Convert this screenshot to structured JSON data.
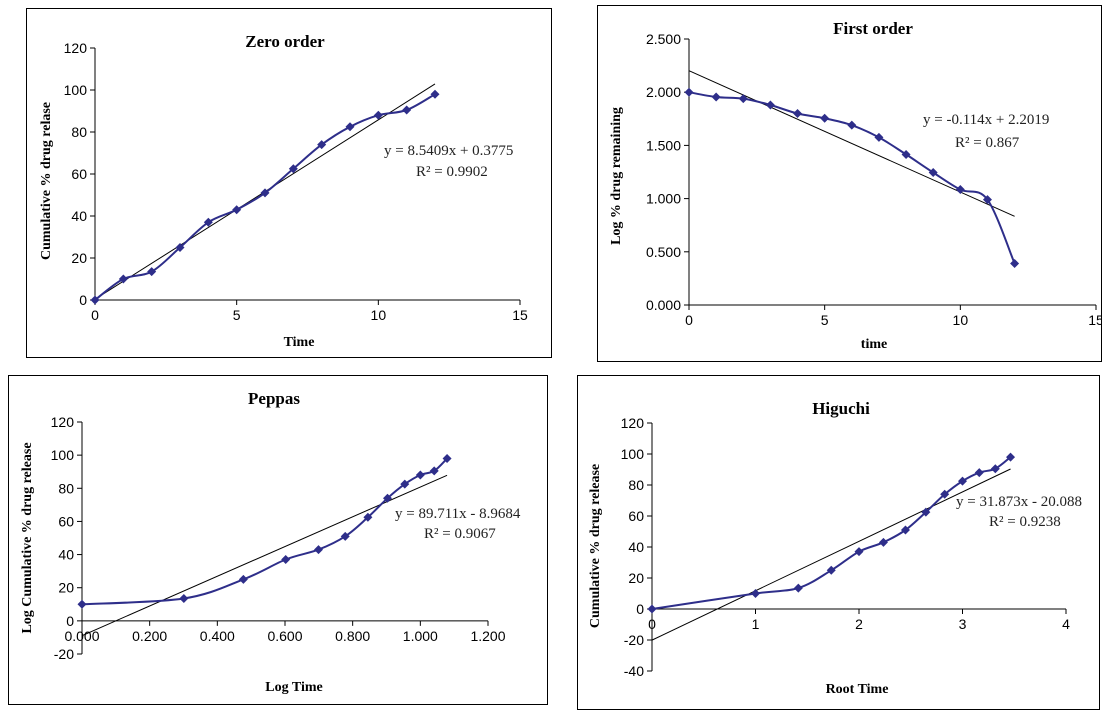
{
  "chart_data": [
    {
      "type": "scatter",
      "title": "Zero order",
      "xlabel": "Time",
      "ylabel": "Cumulative % drug relase",
      "xlim": [
        0,
        15
      ],
      "ylim": [
        0,
        120
      ],
      "xticks": [
        0,
        5,
        10,
        15
      ],
      "yticks": [
        0,
        20,
        40,
        60,
        80,
        100,
        120
      ],
      "xtick_labels": [
        "0",
        "5",
        "10",
        "15"
      ],
      "ytick_labels": [
        "0",
        "20",
        "40",
        "60",
        "80",
        "100",
        "120"
      ],
      "series": [
        {
          "x": [
            0,
            1,
            2,
            3,
            4,
            5,
            6,
            7,
            8,
            9,
            10,
            11,
            12
          ],
          "y": [
            0,
            10,
            13.5,
            25,
            37,
            43,
            51,
            62.5,
            74,
            82.5,
            88,
            90.5,
            98
          ]
        }
      ],
      "trendline": {
        "slope": 8.5409,
        "intercept": 0.3775,
        "x_range": [
          0,
          12
        ]
      },
      "equation": "y = 8.5409x + 0.3775",
      "r2": "R² = 0.9902",
      "grid": false,
      "colors": {
        "series": "#2e2e8a",
        "trendline": "#000000"
      }
    },
    {
      "type": "scatter",
      "title": "First order",
      "xlabel": "time",
      "ylabel": "Log % drug remaining",
      "xlim": [
        0,
        15
      ],
      "ylim": [
        0,
        2.5
      ],
      "xticks": [
        0,
        5,
        10,
        15
      ],
      "yticks": [
        0,
        0.5,
        1,
        1.5,
        2,
        2.5
      ],
      "xtick_labels": [
        "0",
        "5",
        "10",
        "15"
      ],
      "ytick_labels": [
        "0.000",
        "0.500",
        "1.000",
        "1.500",
        "2.000",
        "2.500"
      ],
      "series": [
        {
          "x": [
            0,
            1,
            2,
            3,
            4,
            5,
            6,
            7,
            8,
            9,
            10,
            11,
            12
          ],
          "y": [
            2.0,
            1.955,
            1.94,
            1.88,
            1.8,
            1.755,
            1.69,
            1.575,
            1.415,
            1.245,
            1.085,
            0.99,
            0.39
          ]
        }
      ],
      "trendline": {
        "slope": -0.114,
        "intercept": 2.2019,
        "x_range": [
          0,
          12
        ]
      },
      "equation": "y = -0.114x + 2.2019",
      "r2": "R² = 0.867",
      "grid": false,
      "colors": {
        "series": "#2e2e8a",
        "trendline": "#000000"
      }
    },
    {
      "type": "scatter",
      "title": "Peppas",
      "xlabel": "Log Time",
      "ylabel": "Log Cumulative % drug release",
      "xlim": [
        0,
        1.2
      ],
      "ylim": [
        -20,
        120
      ],
      "xticks": [
        0,
        0.2,
        0.4,
        0.6,
        0.8,
        1.0,
        1.2
      ],
      "yticks": [
        -20,
        0,
        20,
        40,
        60,
        80,
        100,
        120
      ],
      "xtick_labels": [
        "0.000",
        "0.200",
        "0.400",
        "0.600",
        "0.800",
        "1.000",
        "1.200"
      ],
      "ytick_labels": [
        "-20",
        "0",
        "20",
        "40",
        "60",
        "80",
        "100",
        "120"
      ],
      "series": [
        {
          "x": [
            0,
            0.301,
            0.477,
            0.602,
            0.699,
            0.778,
            0.845,
            0.903,
            0.954,
            1.0,
            1.041,
            1.079
          ],
          "y": [
            10,
            13.5,
            25,
            37,
            43,
            51,
            62.5,
            74,
            82.5,
            88,
            90.5,
            98
          ]
        }
      ],
      "trendline": {
        "slope": 89.711,
        "intercept": -8.9684,
        "x_range": [
          0,
          1.079
        ]
      },
      "equation": "y = 89.711x - 8.9684",
      "r2": "R² = 0.9067",
      "grid": false,
      "colors": {
        "series": "#2e2e8a",
        "trendline": "#000000"
      }
    },
    {
      "type": "scatter",
      "title": "Higuchi",
      "xlabel": "Root Time",
      "ylabel": "Cumulative % drug release",
      "xlim": [
        0,
        4
      ],
      "ylim": [
        -40,
        120
      ],
      "xticks": [
        0,
        1,
        2,
        3,
        4
      ],
      "yticks": [
        -40,
        -20,
        0,
        20,
        40,
        60,
        80,
        100,
        120
      ],
      "xtick_labels": [
        "0",
        "1",
        "2",
        "3",
        "4"
      ],
      "ytick_labels": [
        "-40",
        "-20",
        "0",
        "20",
        "40",
        "60",
        "80",
        "100",
        "120"
      ],
      "series": [
        {
          "x": [
            0,
            1,
            1.414,
            1.732,
            2,
            2.236,
            2.449,
            2.646,
            2.828,
            3,
            3.162,
            3.317,
            3.464
          ],
          "y": [
            0,
            10,
            13.5,
            25,
            37,
            43,
            51,
            62.5,
            74,
            82.5,
            88,
            90.5,
            98
          ]
        }
      ],
      "trendline": {
        "slope": 31.873,
        "intercept": -20.088,
        "x_range": [
          0,
          3.464
        ]
      },
      "equation": "y = 31.873x - 20.088",
      "r2": "R² = 0.9238",
      "grid": false,
      "colors": {
        "series": "#2e2e8a",
        "trendline": "#000000"
      }
    }
  ]
}
